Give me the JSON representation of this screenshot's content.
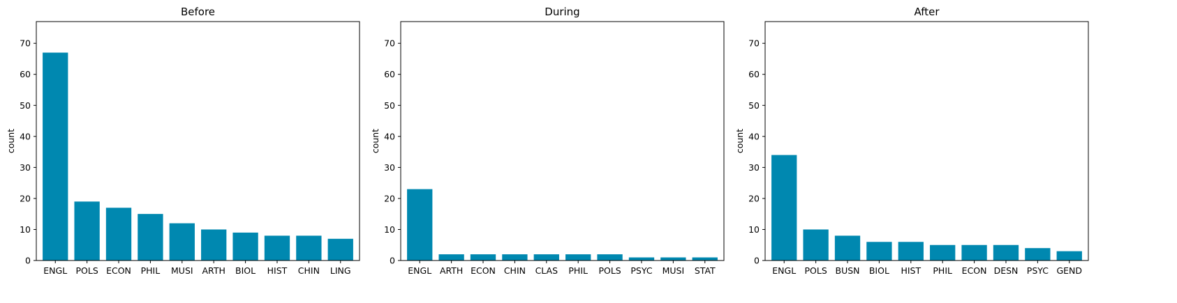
{
  "chart_data": [
    {
      "type": "bar",
      "title": "Before",
      "xlabel": "",
      "ylabel": "count",
      "ylim": [
        0,
        77
      ],
      "yticks": [
        0,
        10,
        20,
        30,
        40,
        50,
        60,
        70
      ],
      "categories": [
        "ENGL",
        "POLS",
        "ECON",
        "PHIL",
        "MUSI",
        "ARTH",
        "BIOL",
        "HIST",
        "CHIN",
        "LING"
      ],
      "values": [
        67,
        19,
        17,
        15,
        12,
        10,
        9,
        8,
        8,
        7
      ],
      "color": "#0088b0",
      "grid": false
    },
    {
      "type": "bar",
      "title": "During",
      "xlabel": "",
      "ylabel": "count",
      "ylim": [
        0,
        77
      ],
      "yticks": [
        0,
        10,
        20,
        30,
        40,
        50,
        60,
        70
      ],
      "categories": [
        "ENGL",
        "ARTH",
        "ECON",
        "CHIN",
        "CLAS",
        "PHIL",
        "POLS",
        "PSYC",
        "MUSI",
        "STAT"
      ],
      "values": [
        23,
        2,
        2,
        2,
        2,
        2,
        2,
        1,
        1,
        1
      ],
      "color": "#0088b0",
      "grid": false
    },
    {
      "type": "bar",
      "title": "After",
      "xlabel": "",
      "ylabel": "count",
      "ylim": [
        0,
        77
      ],
      "yticks": [
        0,
        10,
        20,
        30,
        40,
        50,
        60,
        70
      ],
      "categories": [
        "ENGL",
        "POLS",
        "BUSN",
        "BIOL",
        "HIST",
        "PHIL",
        "ECON",
        "DESN",
        "PSYC",
        "GEND"
      ],
      "values": [
        34,
        10,
        8,
        6,
        6,
        5,
        5,
        5,
        4,
        3
      ],
      "color": "#0088b0",
      "grid": false
    }
  ]
}
